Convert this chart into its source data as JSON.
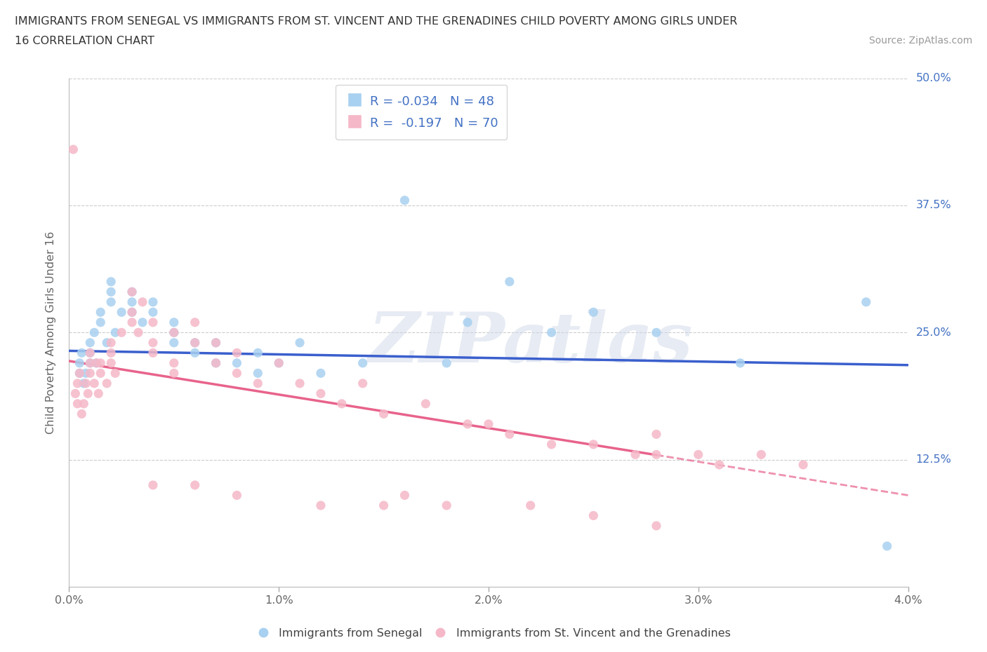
{
  "title_line1": "IMMIGRANTS FROM SENEGAL VS IMMIGRANTS FROM ST. VINCENT AND THE GRENADINES CHILD POVERTY AMONG GIRLS UNDER",
  "title_line2": "16 CORRELATION CHART",
  "source_text": "Source: ZipAtlas.com",
  "ylabel": "Child Poverty Among Girls Under 16",
  "watermark": "ZIPatlas",
  "legend_label1": "Immigrants from Senegal",
  "legend_label2": "Immigrants from St. Vincent and the Grenadines",
  "R1": -0.034,
  "N1": 48,
  "R2": -0.197,
  "N2": 70,
  "color1": "#A8D0F0",
  "color2": "#F5B8C8",
  "trendline1_color": "#3A5FCD",
  "trendline2_color": "#E8638C",
  "xlim": [
    0.0,
    0.04
  ],
  "ylim": [
    0.0,
    0.5
  ],
  "xticks": [
    0.0,
    0.01,
    0.02,
    0.03,
    0.04
  ],
  "xtick_labels": [
    "0.0%",
    "1.0%",
    "2.0%",
    "3.0%",
    "4.0%"
  ],
  "yticks": [
    0.0,
    0.125,
    0.25,
    0.375,
    0.5
  ],
  "ytick_labels": [
    "",
    "12.5%",
    "25.0%",
    "37.5%",
    "50.0%"
  ],
  "senegal_x": [
    0.0005,
    0.0005,
    0.0006,
    0.0007,
    0.0008,
    0.001,
    0.001,
    0.001,
    0.0012,
    0.0013,
    0.0015,
    0.0015,
    0.0018,
    0.002,
    0.002,
    0.002,
    0.0022,
    0.0025,
    0.003,
    0.003,
    0.003,
    0.0035,
    0.004,
    0.004,
    0.005,
    0.005,
    0.005,
    0.006,
    0.006,
    0.007,
    0.007,
    0.008,
    0.009,
    0.009,
    0.01,
    0.011,
    0.012,
    0.014,
    0.016,
    0.018,
    0.019,
    0.021,
    0.023,
    0.025,
    0.028,
    0.032,
    0.038,
    0.039
  ],
  "senegal_y": [
    0.22,
    0.21,
    0.23,
    0.2,
    0.21,
    0.22,
    0.23,
    0.24,
    0.25,
    0.22,
    0.26,
    0.27,
    0.24,
    0.28,
    0.29,
    0.3,
    0.25,
    0.27,
    0.27,
    0.28,
    0.29,
    0.26,
    0.27,
    0.28,
    0.24,
    0.25,
    0.26,
    0.23,
    0.24,
    0.22,
    0.24,
    0.22,
    0.21,
    0.23,
    0.22,
    0.24,
    0.21,
    0.22,
    0.38,
    0.22,
    0.26,
    0.3,
    0.25,
    0.27,
    0.25,
    0.22,
    0.28,
    0.04
  ],
  "stvinc_x": [
    0.0002,
    0.0003,
    0.0004,
    0.0004,
    0.0005,
    0.0006,
    0.0007,
    0.0008,
    0.0009,
    0.001,
    0.001,
    0.001,
    0.0012,
    0.0013,
    0.0014,
    0.0015,
    0.0015,
    0.0018,
    0.002,
    0.002,
    0.002,
    0.0022,
    0.0025,
    0.003,
    0.003,
    0.003,
    0.0033,
    0.0035,
    0.004,
    0.004,
    0.004,
    0.005,
    0.005,
    0.005,
    0.006,
    0.006,
    0.007,
    0.007,
    0.008,
    0.008,
    0.009,
    0.01,
    0.011,
    0.012,
    0.013,
    0.014,
    0.015,
    0.017,
    0.019,
    0.02,
    0.021,
    0.023,
    0.025,
    0.027,
    0.028,
    0.028,
    0.03,
    0.031,
    0.033,
    0.035,
    0.004,
    0.006,
    0.008,
    0.012,
    0.015,
    0.016,
    0.018,
    0.022,
    0.025,
    0.028
  ],
  "stvinc_y": [
    0.43,
    0.19,
    0.18,
    0.2,
    0.21,
    0.17,
    0.18,
    0.2,
    0.19,
    0.21,
    0.22,
    0.23,
    0.2,
    0.22,
    0.19,
    0.21,
    0.22,
    0.2,
    0.22,
    0.23,
    0.24,
    0.21,
    0.25,
    0.29,
    0.27,
    0.26,
    0.25,
    0.28,
    0.23,
    0.24,
    0.26,
    0.22,
    0.25,
    0.21,
    0.24,
    0.26,
    0.24,
    0.22,
    0.21,
    0.23,
    0.2,
    0.22,
    0.2,
    0.19,
    0.18,
    0.2,
    0.17,
    0.18,
    0.16,
    0.16,
    0.15,
    0.14,
    0.14,
    0.13,
    0.13,
    0.15,
    0.13,
    0.12,
    0.13,
    0.12,
    0.1,
    0.1,
    0.09,
    0.08,
    0.08,
    0.09,
    0.08,
    0.08,
    0.07,
    0.06
  ],
  "trendline1_y_at_0": 0.232,
  "trendline1_y_at_004": 0.218,
  "trendline2_y_at_0": 0.222,
  "trendline2_y_at_004": 0.09,
  "trendline2_solid_end": 0.028
}
